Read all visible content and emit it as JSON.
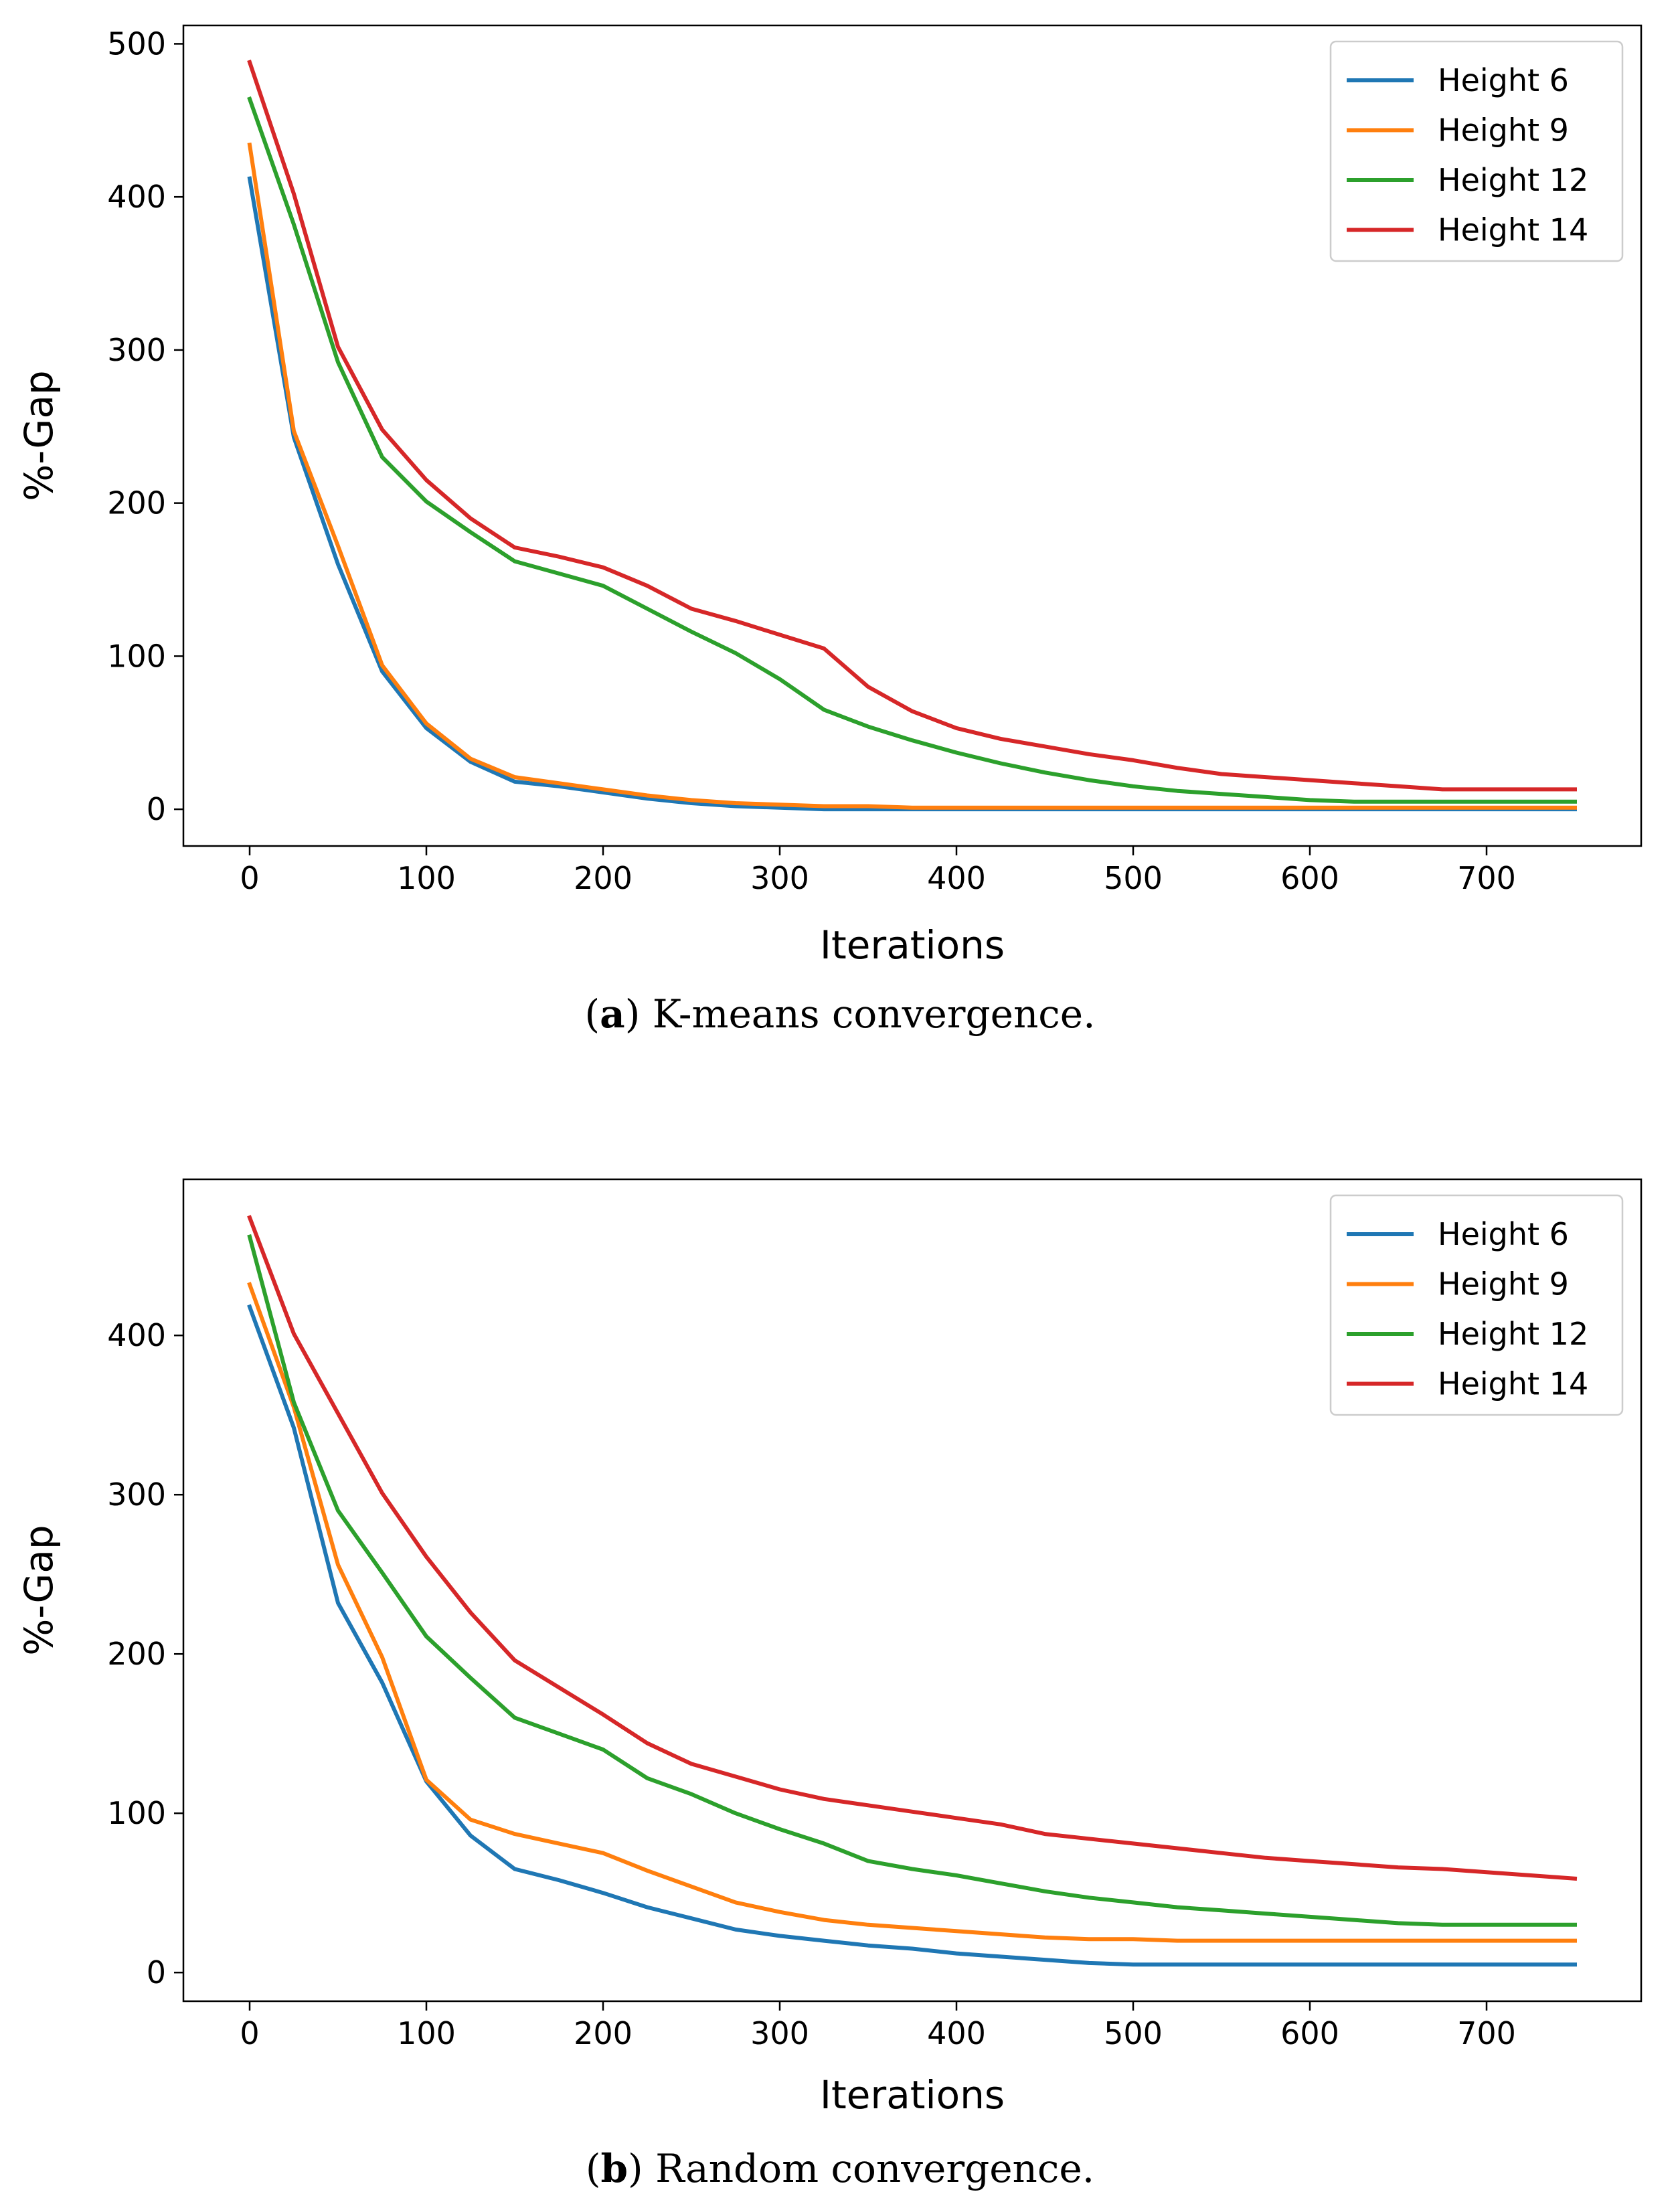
{
  "chart_data": [
    {
      "type": "line",
      "caption": {
        "prefix": "(",
        "letter": "a",
        "suffix": ") K-means convergence."
      },
      "xlabel": "Iterations",
      "ylabel": "%-Gap",
      "xlim": [
        -37.5,
        787.5
      ],
      "ylim": [
        -24,
        512
      ],
      "xticks": [
        "0",
        "100",
        "200",
        "300",
        "400",
        "500",
        "600",
        "700"
      ],
      "yticks": [
        "0",
        "100",
        "200",
        "300",
        "400",
        "500"
      ],
      "legend_position": "top-right",
      "colors": [
        "#1f77b4",
        "#ff7f0e",
        "#2ca02c",
        "#d62728"
      ],
      "x": [
        0,
        25,
        50,
        75,
        100,
        125,
        150,
        175,
        200,
        225,
        250,
        275,
        300,
        325,
        350,
        375,
        400,
        425,
        450,
        475,
        500,
        525,
        550,
        575,
        600,
        625,
        650,
        675,
        700,
        725,
        750
      ],
      "series": [
        {
          "name": "Height 6",
          "values": [
            412,
            243,
            160,
            90,
            53,
            31,
            18,
            15,
            11,
            7,
            4,
            2,
            1,
            0,
            0,
            0,
            0,
            0,
            0,
            0,
            0,
            0,
            0,
            0,
            0,
            0,
            0,
            0,
            0,
            0,
            0
          ]
        },
        {
          "name": "Height 9",
          "values": [
            434,
            247,
            172,
            94,
            56,
            33,
            21,
            17,
            13,
            9,
            6,
            4,
            3,
            2,
            2,
            1,
            1,
            1,
            1,
            1,
            1,
            1,
            1,
            1,
            1,
            1,
            1,
            1,
            1,
            1,
            1
          ]
        },
        {
          "name": "Height 12",
          "values": [
            464,
            382,
            292,
            230,
            201,
            181,
            162,
            154,
            146,
            131,
            116,
            102,
            85,
            65,
            54,
            45,
            37,
            30,
            24,
            19,
            15,
            12,
            10,
            8,
            6,
            5,
            5,
            5,
            5,
            5,
            5
          ]
        },
        {
          "name": "Height 14",
          "values": [
            488,
            402,
            302,
            248,
            215,
            190,
            171,
            165,
            158,
            146,
            131,
            123,
            114,
            105,
            80,
            64,
            53,
            46,
            41,
            36,
            32,
            27,
            23,
            21,
            19,
            17,
            15,
            13,
            13,
            13,
            13
          ]
        }
      ]
    },
    {
      "type": "line",
      "caption": {
        "prefix": "(",
        "letter": "b",
        "suffix": ") Random convergence."
      },
      "xlabel": "Iterations",
      "ylabel": "%-Gap",
      "xlim": [
        -37.5,
        787.5
      ],
      "ylim": [
        -18,
        498
      ],
      "xticks": [
        "0",
        "100",
        "200",
        "300",
        "400",
        "500",
        "600",
        "700"
      ],
      "yticks": [
        "0",
        "100",
        "200",
        "300",
        "400"
      ],
      "legend_position": "top-right",
      "colors": [
        "#1f77b4",
        "#ff7f0e",
        "#2ca02c",
        "#d62728"
      ],
      "x": [
        0,
        25,
        50,
        75,
        100,
        125,
        150,
        175,
        200,
        225,
        250,
        275,
        300,
        325,
        350,
        375,
        400,
        425,
        450,
        475,
        500,
        525,
        550,
        575,
        600,
        625,
        650,
        675,
        700,
        725,
        750
      ],
      "series": [
        {
          "name": "Height 6",
          "values": [
            418,
            342,
            232,
            182,
            120,
            86,
            65,
            58,
            50,
            41,
            34,
            27,
            23,
            20,
            17,
            15,
            12,
            10,
            8,
            6,
            5,
            5,
            5,
            5,
            5,
            5,
            5,
            5,
            5,
            5,
            5
          ]
        },
        {
          "name": "Height 9",
          "values": [
            432,
            355,
            256,
            198,
            121,
            96,
            87,
            81,
            75,
            64,
            54,
            44,
            38,
            33,
            30,
            28,
            26,
            24,
            22,
            21,
            21,
            20,
            20,
            20,
            20,
            20,
            20,
            20,
            20,
            20,
            20
          ]
        },
        {
          "name": "Height 12",
          "values": [
            462,
            358,
            290,
            251,
            211,
            185,
            160,
            150,
            140,
            122,
            112,
            100,
            90,
            81,
            70,
            65,
            61,
            56,
            51,
            47,
            44,
            41,
            39,
            37,
            35,
            33,
            31,
            30,
            30,
            30,
            30
          ]
        },
        {
          "name": "Height 14",
          "values": [
            474,
            401,
            351,
            301,
            261,
            226,
            196,
            179,
            162,
            144,
            131,
            123,
            115,
            109,
            105,
            101,
            97,
            93,
            87,
            84,
            81,
            78,
            75,
            72,
            70,
            68,
            66,
            65,
            63,
            61,
            59
          ]
        }
      ]
    }
  ]
}
